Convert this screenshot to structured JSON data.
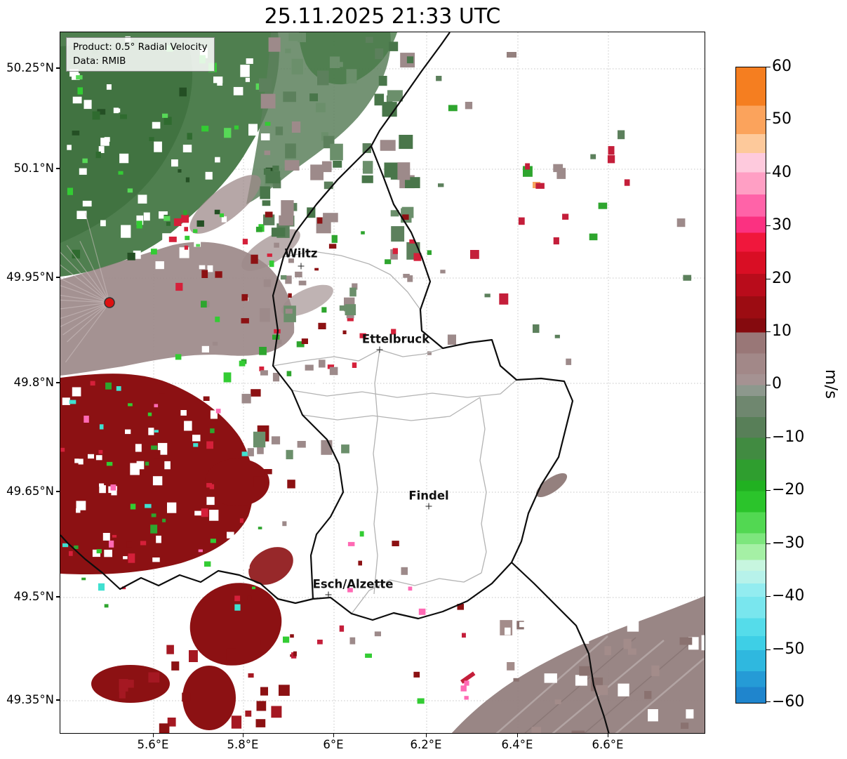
{
  "title": "25.11.2025 21:33 UTC",
  "legend": {
    "product": "Product: 0.5° Radial Velocity",
    "data_source": "Data: RMIB"
  },
  "axes": {
    "y_ticks": [
      "50.25°N",
      "50.1°N",
      "49.95°N",
      "49.8°N",
      "49.65°N",
      "49.5°N",
      "49.35°N"
    ],
    "x_ticks": [
      "5.6°E",
      "5.8°E",
      "6°E",
      "6.2°E",
      "6.4°E",
      "6.6°E"
    ]
  },
  "colorbar": {
    "label": "m/s",
    "ticks": [
      "60",
      "50",
      "40",
      "30",
      "20",
      "10",
      "0",
      "−10",
      "−20",
      "−30",
      "−40",
      "−50",
      "−60"
    ],
    "vmin": -60,
    "vmax": 60,
    "colors": {
      "max_positive": "#f57e20",
      "strong_positive": "#b90c1b",
      "weak_positive": "#a28888",
      "weak_negative": "#6f876f",
      "strong_negative": "#2f9e2f",
      "max_negative": "#1f85cd"
    }
  },
  "map": {
    "cities": [
      {
        "name": "Wiltz"
      },
      {
        "name": "Ettelbruck"
      },
      {
        "name": "Findel"
      },
      {
        "name": "Esch/Alzette"
      }
    ],
    "radar_site_color": "#dd1111"
  }
}
